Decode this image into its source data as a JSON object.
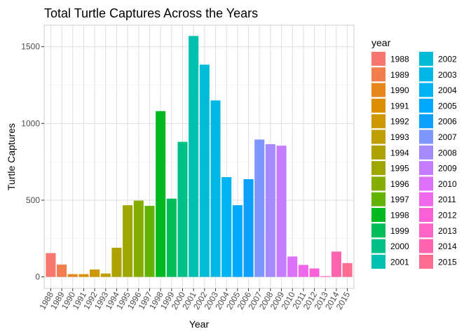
{
  "chart_data": {
    "type": "bar",
    "title": "Total Turtle Captures Across the Years",
    "xlabel": "Year",
    "ylabel": "Turtle Captures",
    "ylim": [
      -75,
      1640
    ],
    "yticks": [
      0,
      500,
      1000,
      1500
    ],
    "grid": true,
    "legend_title": "year",
    "legend_position": "right",
    "categories": [
      "1988",
      "1989",
      "1990",
      "1991",
      "1992",
      "1993",
      "1994",
      "1995",
      "1996",
      "1997",
      "1998",
      "1999",
      "2000",
      "2001",
      "2002",
      "2003",
      "2004",
      "2005",
      "2006",
      "2007",
      "2008",
      "2009",
      "2010",
      "2011",
      "2012",
      "2013",
      "2014",
      "2015"
    ],
    "values": [
      155,
      80,
      18,
      18,
      48,
      22,
      190,
      467,
      497,
      463,
      1080,
      510,
      880,
      1570,
      1383,
      1150,
      650,
      467,
      637,
      895,
      865,
      855,
      133,
      78,
      55,
      5,
      165,
      90
    ],
    "colors": [
      "#F8766D",
      "#F17E4C",
      "#E7861B",
      "#DB8E00",
      "#CE9700",
      "#BF9E00",
      "#AEA200",
      "#9DA700",
      "#84AD00",
      "#64B200",
      "#00B81F",
      "#00BC59",
      "#00C088",
      "#00C0AF",
      "#00BCD6",
      "#00B8E7",
      "#00B3F2",
      "#00A9FF",
      "#0CA0FF",
      "#7F96FF",
      "#A58AFF",
      "#C77CFF",
      "#DE71F9",
      "#EF67EB",
      "#FB61D7",
      "#FF63C4",
      "#FF65AE",
      "#FF6C91"
    ]
  }
}
